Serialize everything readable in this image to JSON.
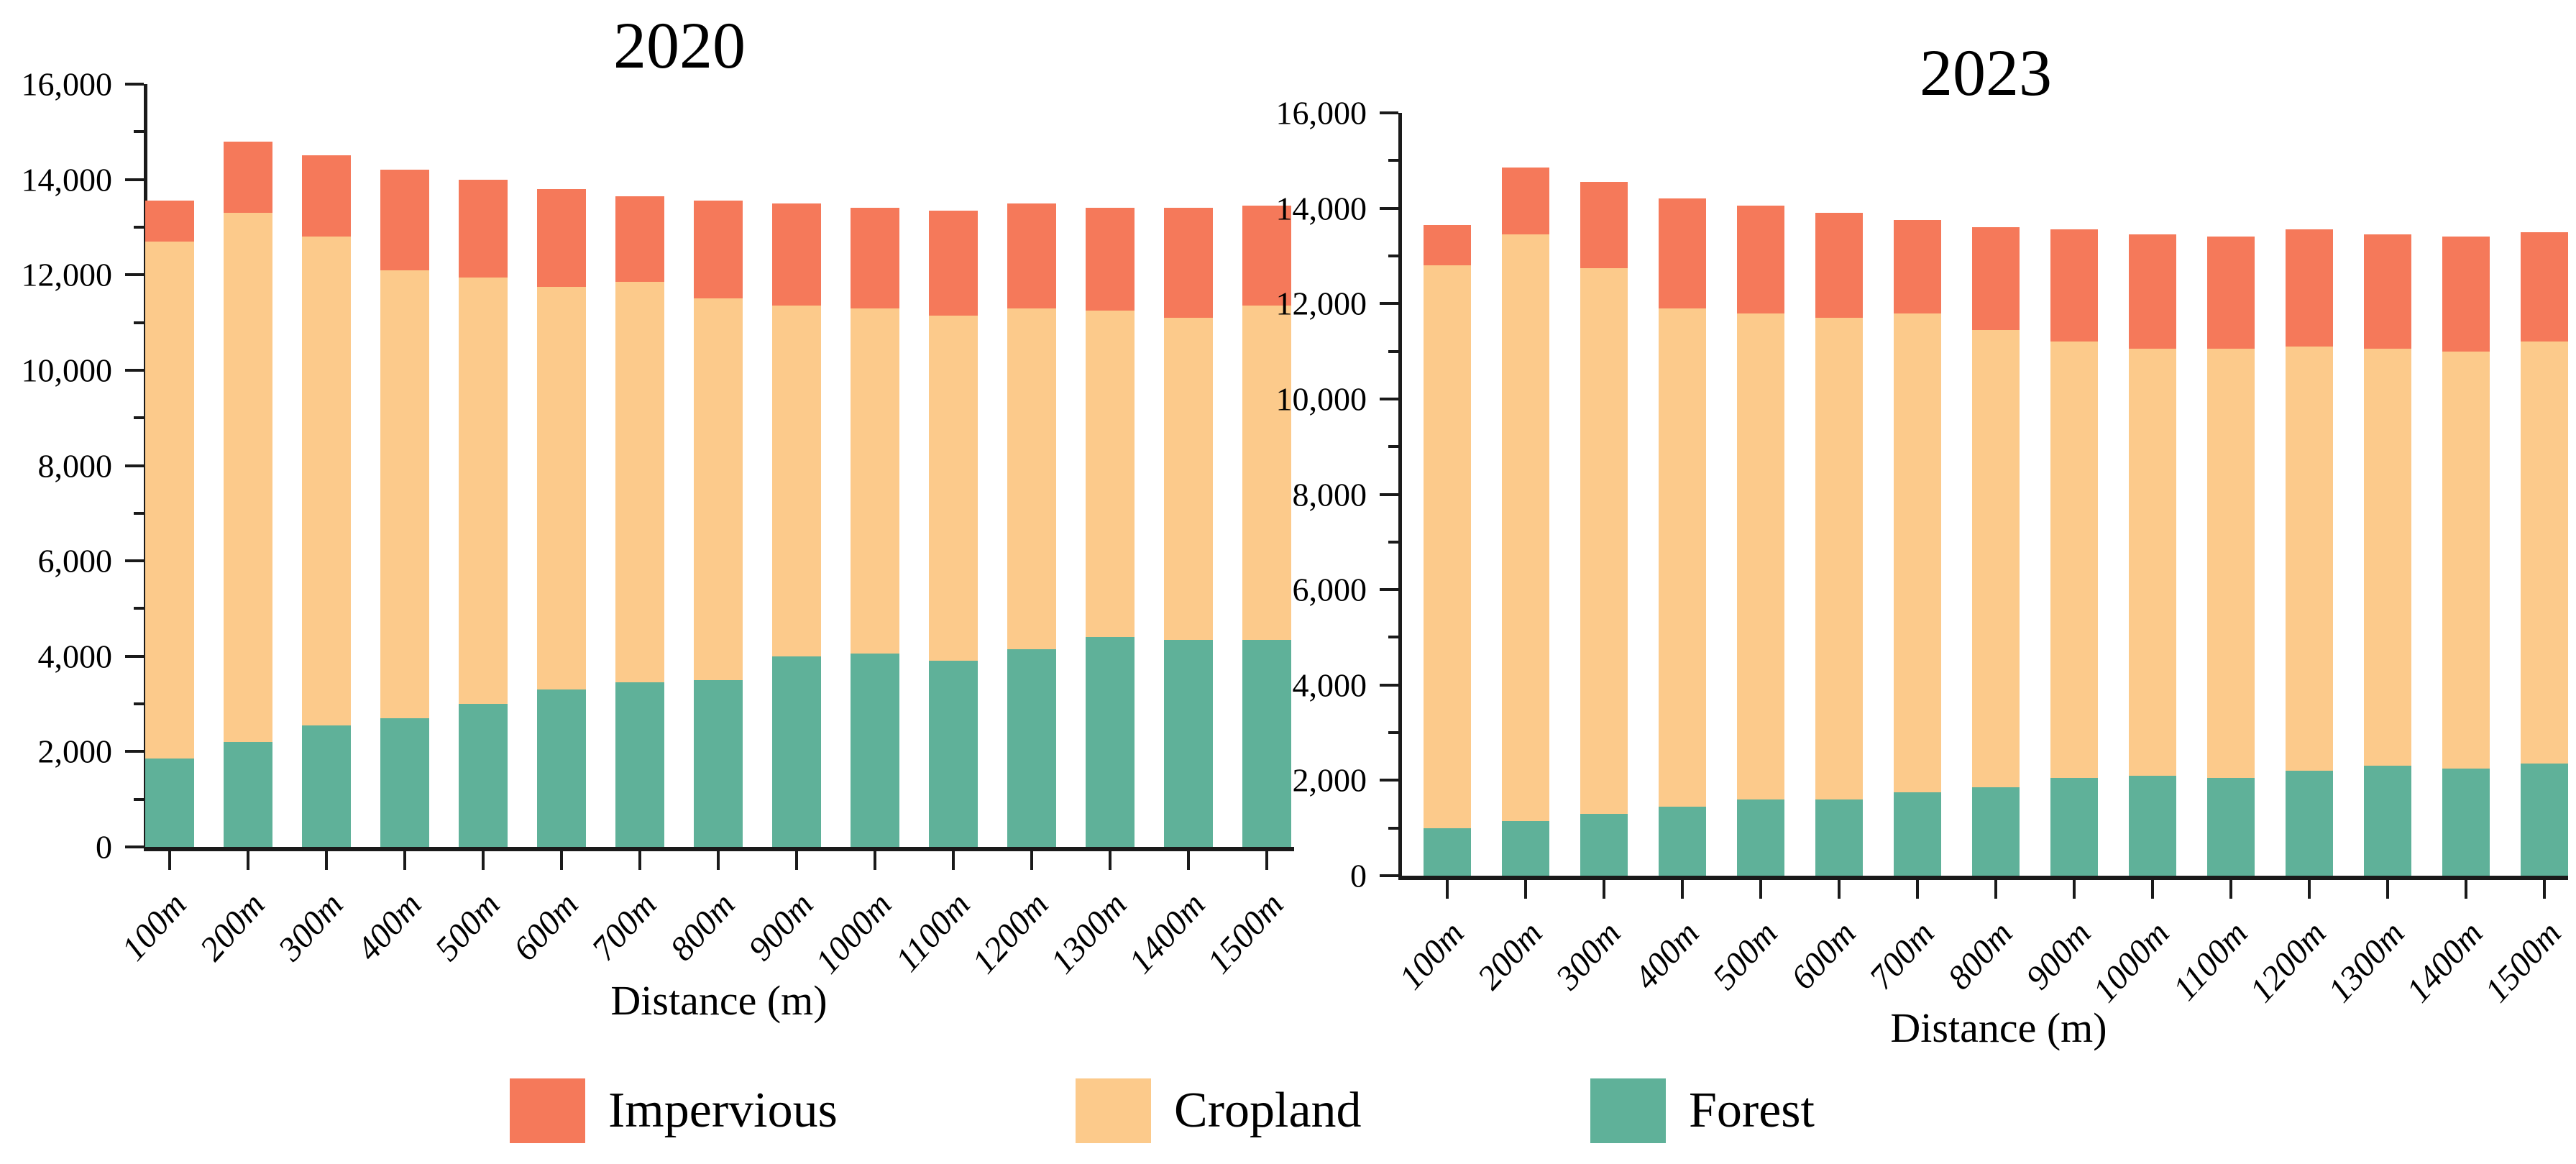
{
  "figure": {
    "background": "#ffffff",
    "text_color": "#000000",
    "axis_color": "#1a1a1a"
  },
  "legend": {
    "items": [
      {
        "label": "Impervious",
        "color": "#F5795A"
      },
      {
        "label": "Cropland",
        "color": "#FCCA8B"
      },
      {
        "label": "Forest",
        "color": "#5FB199"
      }
    ]
  },
  "chart_data": [
    {
      "type": "bar",
      "stacked": true,
      "title": "2020",
      "xlabel": "Distance (m)",
      "ylabel": "",
      "ylim": [
        0,
        16000
      ],
      "ytick_step": 2000,
      "yminor_step": 1000,
      "grid": false,
      "legend_position": "bottom",
      "categories": [
        "100m",
        "200m",
        "300m",
        "400m",
        "500m",
        "600m",
        "700m",
        "800m",
        "900m",
        "1000m",
        "1100m",
        "1200m",
        "1300m",
        "1400m",
        "1500m"
      ],
      "series": [
        {
          "name": "Forest",
          "color": "#5FB199",
          "values": [
            1850,
            2200,
            2550,
            2700,
            3000,
            3300,
            3450,
            3500,
            4000,
            4050,
            3900,
            4150,
            4400,
            4350,
            4350
          ]
        },
        {
          "name": "Cropland",
          "color": "#FCCA8B",
          "values": [
            10850,
            11100,
            10250,
            9400,
            8950,
            8450,
            8400,
            8000,
            7350,
            7250,
            7250,
            7150,
            6850,
            6750,
            7000
          ]
        },
        {
          "name": "Impervious",
          "color": "#F5795A",
          "values": [
            850,
            1500,
            1700,
            2100,
            2050,
            2050,
            1800,
            2050,
            2150,
            2100,
            2200,
            2200,
            2150,
            2300,
            2100
          ]
        }
      ],
      "totals": [
        13550,
        14800,
        14500,
        14200,
        14000,
        13800,
        13650,
        13550,
        13500,
        13400,
        13350,
        13500,
        13400,
        13400,
        13450
      ]
    },
    {
      "type": "bar",
      "stacked": true,
      "title": "2023",
      "xlabel": "Distance (m)",
      "ylabel": "",
      "ylim": [
        0,
        16000
      ],
      "ytick_step": 2000,
      "yminor_step": 1000,
      "grid": false,
      "legend_position": "bottom",
      "categories": [
        "100m",
        "200m",
        "300m",
        "400m",
        "500m",
        "600m",
        "700m",
        "800m",
        "900m",
        "1000m",
        "1100m",
        "1200m",
        "1300m",
        "1400m",
        "1500m"
      ],
      "series": [
        {
          "name": "Forest",
          "color": "#5FB199",
          "values": [
            1000,
            1150,
            1300,
            1450,
            1600,
            1600,
            1750,
            1850,
            2050,
            2100,
            2050,
            2200,
            2300,
            2250,
            2350
          ]
        },
        {
          "name": "Cropland",
          "color": "#FCCA8B",
          "values": [
            11800,
            12300,
            11450,
            10450,
            10200,
            10100,
            10050,
            9600,
            9150,
            8950,
            9000,
            8900,
            8750,
            8750,
            8850
          ]
        },
        {
          "name": "Impervious",
          "color": "#F5795A",
          "values": [
            850,
            1400,
            1800,
            2300,
            2250,
            2200,
            1950,
            2150,
            2350,
            2400,
            2350,
            2450,
            2400,
            2400,
            2300
          ]
        }
      ],
      "totals": [
        13650,
        14850,
        14550,
        14200,
        14050,
        13900,
        13750,
        13600,
        13550,
        13450,
        13400,
        13550,
        13450,
        13400,
        13500
      ]
    }
  ]
}
